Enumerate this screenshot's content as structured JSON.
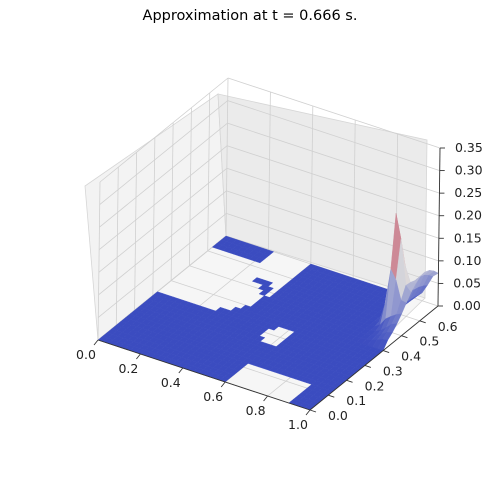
{
  "chart_data": {
    "type": "surface3d",
    "title": "Approximation at t = 0.666 s.",
    "xlabel": "",
    "ylabel": "",
    "zlabel": "",
    "x_ticks": [
      "0.0",
      "0.2",
      "0.4",
      "0.6",
      "0.8",
      "1.0"
    ],
    "y_ticks": [
      "0.0",
      "0.1",
      "0.2",
      "0.3",
      "0.4",
      "0.5",
      "0.6"
    ],
    "z_ticks": [
      "0.00",
      "0.05",
      "0.10",
      "0.15",
      "0.20",
      "0.25",
      "0.30",
      "0.35"
    ],
    "xlim": [
      0,
      1.0
    ],
    "ylim": [
      0,
      0.7
    ],
    "zlim": [
      0,
      0.35
    ],
    "grid": true,
    "colormap": "coolwarm",
    "colors": {
      "low": "#3b4cc0",
      "mid": "#dddcdc",
      "high": "#b40426"
    },
    "surface_summary": {
      "baseline_value": 0.0,
      "peak": {
        "x": 0.93,
        "y": 0.55,
        "z": 0.23
      },
      "ridge": {
        "x": 1.0,
        "y": [
          0.45,
          0.7
        ],
        "z_max": 0.1
      }
    }
  }
}
